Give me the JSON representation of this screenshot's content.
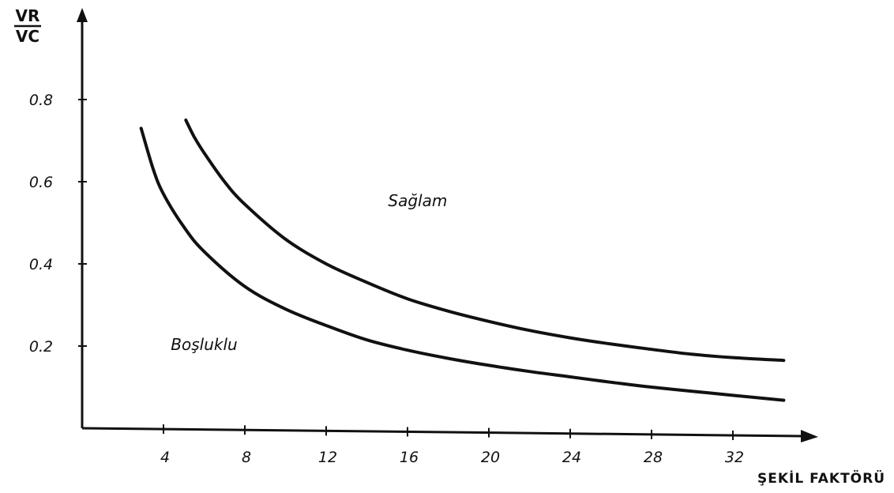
{
  "chart_data": {
    "type": "line",
    "ylabel_numerator": "VR",
    "ylabel_denominator": "VC",
    "xlabel": "ŞEKİL FAKTÖRÜ",
    "xticks": [
      4,
      8,
      12,
      16,
      20,
      24,
      28,
      32
    ],
    "xtick_labels": [
      "4",
      "8",
      "12",
      "16",
      "20",
      "24",
      "28",
      "32"
    ],
    "yticks": [
      0.2,
      0.4,
      0.6,
      0.8
    ],
    "ytick_labels": [
      "0.2",
      "0.4",
      "0.6",
      "0.8"
    ],
    "xlim": [
      0,
      36
    ],
    "ylim": [
      0,
      1.0
    ],
    "grid": false,
    "annotations": [
      {
        "text": "Sağlam",
        "x": 16.5,
        "y": 0.54
      },
      {
        "text": "Boşluklu",
        "x": 6.0,
        "y": 0.19
      }
    ],
    "series": [
      {
        "x": [
          2.9,
          3.5,
          4.0,
          5.0,
          6.0,
          8.0,
          10.0,
          12.0,
          14.0,
          16.0,
          18.0,
          20.0,
          22.0,
          24.0,
          26.0,
          28.0,
          30.0,
          32.0,
          34.5
        ],
        "y": [
          0.73,
          0.63,
          0.57,
          0.49,
          0.43,
          0.345,
          0.29,
          0.25,
          0.215,
          0.19,
          0.17,
          0.153,
          0.138,
          0.125,
          0.112,
          0.1,
          0.09,
          0.08,
          0.068
        ]
      },
      {
        "x": [
          5.1,
          5.5,
          6.0,
          7.0,
          8.0,
          10.0,
          12.0,
          14.0,
          16.0,
          18.0,
          20.0,
          22.0,
          24.0,
          26.0,
          28.0,
          30.0,
          32.0,
          34.5
        ],
        "y": [
          0.75,
          0.71,
          0.67,
          0.6,
          0.545,
          0.46,
          0.4,
          0.355,
          0.315,
          0.285,
          0.26,
          0.238,
          0.22,
          0.205,
          0.192,
          0.18,
          0.172,
          0.165
        ]
      }
    ]
  }
}
